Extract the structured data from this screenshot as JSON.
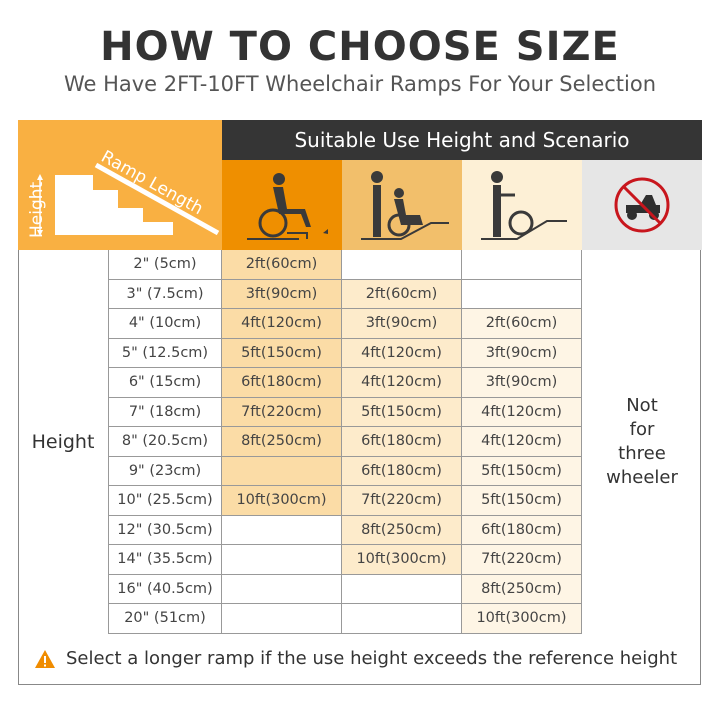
{
  "title": "HOW TO CHOOSE SIZE",
  "subtitle": "We Have  2FT-10FT  Wheelchair Ramps For Your Selection",
  "diagram": {
    "height_label": "Height",
    "ramp_label": "Ramp Length"
  },
  "header": "Suitable Use Height and Scenario",
  "scenarios": [
    {
      "icon": "self-propelled-wheelchair-icon",
      "color": "#ef8f00",
      "cell_color": "#fbdca6"
    },
    {
      "icon": "assisted-wheelchair-icon",
      "color": "#f2bf6b",
      "cell_color": "#fdebcb"
    },
    {
      "icon": "pushed-wheelchair-icon",
      "color": "#fdf0d6",
      "cell_color": "#fef5e5"
    },
    {
      "icon": "no-scooter-icon",
      "color": "#e6e6e6"
    }
  ],
  "row_label": "Height",
  "rows": [
    {
      "height": "2\" (5cm)",
      "values": [
        "2ft(60cm)",
        "",
        ""
      ]
    },
    {
      "height": "3\" (7.5cm)",
      "values": [
        "3ft(90cm)",
        "2ft(60cm)",
        ""
      ]
    },
    {
      "height": "4\" (10cm)",
      "values": [
        "4ft(120cm)",
        "3ft(90cm)",
        "2ft(60cm)"
      ]
    },
    {
      "height": "5\" (12.5cm)",
      "values": [
        "5ft(150cm)",
        "4ft(120cm)",
        "3ft(90cm)"
      ]
    },
    {
      "height": "6\" (15cm)",
      "values": [
        "6ft(180cm)",
        "4ft(120cm)",
        "3ft(90cm)"
      ]
    },
    {
      "height": "7\" (18cm)",
      "values": [
        "7ft(220cm)",
        "5ft(150cm)",
        "4ft(120cm)"
      ]
    },
    {
      "height": "8\" (20.5cm)",
      "values": [
        "8ft(250cm)",
        "6ft(180cm)",
        "4ft(120cm)"
      ]
    },
    {
      "height": "9\" (23cm)",
      "values": [
        "",
        "6ft(180cm)",
        "5ft(150cm)"
      ]
    },
    {
      "height": "10\" (25.5cm)",
      "values": [
        "10ft(300cm)",
        "7ft(220cm)",
        "5ft(150cm)"
      ]
    },
    {
      "height": "12\" (30.5cm)",
      "values": [
        "",
        "8ft(250cm)",
        "6ft(180cm)"
      ]
    },
    {
      "height": "14\" (35.5cm)",
      "values": [
        "",
        "10ft(300cm)",
        "7ft(220cm)"
      ]
    },
    {
      "height": "16\" (40.5cm)",
      "values": [
        "",
        "",
        "8ft(250cm)"
      ]
    },
    {
      "height": "20\" (51cm)",
      "values": [
        "",
        "",
        "10ft(300cm)"
      ]
    }
  ],
  "note": "Not\nfor\nthree\nwheeler",
  "warning": {
    "icon": "warning-icon",
    "color": "#f08c00",
    "text": "Select a longer ramp if the use height exceeds the reference height"
  },
  "accent": "#f9b042"
}
